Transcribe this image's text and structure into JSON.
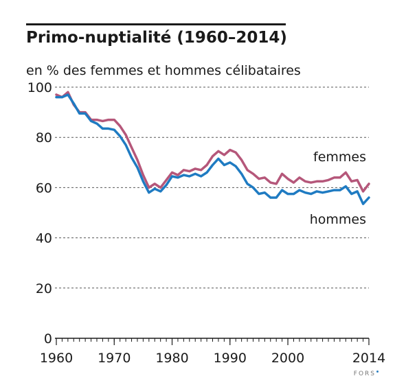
{
  "header": {
    "title": "Primo-nuptialité (1960–2014)",
    "subtitle": "en % des femmes et hommes célibataires"
  },
  "footer": {
    "logo_text": "FORS"
  },
  "colors": {
    "femmes": "#b5577a",
    "hommes": "#1f7bc2",
    "grid": "#555555",
    "axis": "#1a1a1a"
  },
  "chart_data": {
    "type": "line",
    "title": "Primo-nuptialité (1960–2014)",
    "subtitle": "en % des femmes et hommes célibataires",
    "xlabel": "",
    "ylabel": "",
    "xlim": [
      1960,
      2014
    ],
    "ylim": [
      0,
      100
    ],
    "yticks": [
      "0",
      "20",
      "40",
      "60",
      "80",
      "100"
    ],
    "ytick_values": [
      0,
      20,
      40,
      60,
      80,
      100
    ],
    "xticks": [
      "1960",
      "1970",
      "1980",
      "1990",
      "2000",
      "2014"
    ],
    "xtick_values": [
      1960,
      1970,
      1980,
      1990,
      2000,
      2014
    ],
    "grid": "horizontal dashed",
    "x": [
      1960,
      1961,
      1962,
      1963,
      1964,
      1965,
      1966,
      1967,
      1968,
      1969,
      1970,
      1971,
      1972,
      1973,
      1974,
      1975,
      1976,
      1977,
      1978,
      1979,
      1980,
      1981,
      1982,
      1983,
      1984,
      1985,
      1986,
      1987,
      1988,
      1989,
      1990,
      1991,
      1992,
      1993,
      1994,
      1995,
      1996,
      1997,
      1998,
      1999,
      2000,
      2001,
      2002,
      2003,
      2004,
      2005,
      2006,
      2007,
      2008,
      2009,
      2010,
      2011,
      2012,
      2013,
      2014
    ],
    "series": [
      {
        "name": "femmes",
        "color": "#b5577a",
        "values": [
          97,
          96,
          98,
          93,
          90,
          90,
          87,
          87,
          86.5,
          87,
          87,
          84.5,
          81,
          76,
          71,
          65,
          60,
          61.5,
          60,
          63,
          66,
          65,
          67,
          66.5,
          67.5,
          67,
          69,
          72.5,
          74.5,
          73,
          75,
          74,
          71,
          67,
          65.5,
          63.5,
          64,
          62,
          61.5,
          65.5,
          63.5,
          62,
          64,
          62.5,
          62,
          62.5,
          62.5,
          63,
          64,
          64,
          66,
          62.5,
          63,
          58.5,
          61.5
        ]
      },
      {
        "name": "hommes",
        "color": "#1f7bc2",
        "values": [
          96,
          96,
          97,
          93.5,
          89.5,
          89.5,
          86.5,
          85.5,
          83.5,
          83.5,
          83,
          80.5,
          77,
          72,
          68,
          62.5,
          58,
          59.5,
          58.5,
          61,
          64.5,
          64,
          65,
          64.5,
          65.5,
          64.5,
          66,
          69,
          71.5,
          69,
          70,
          68.5,
          65.5,
          61.5,
          60,
          57.5,
          58,
          56,
          56,
          59,
          57.5,
          57.5,
          59,
          58,
          57.5,
          58.5,
          58,
          58.5,
          59,
          59,
          60.5,
          57.5,
          58.5,
          53.5,
          56
        ]
      }
    ]
  }
}
